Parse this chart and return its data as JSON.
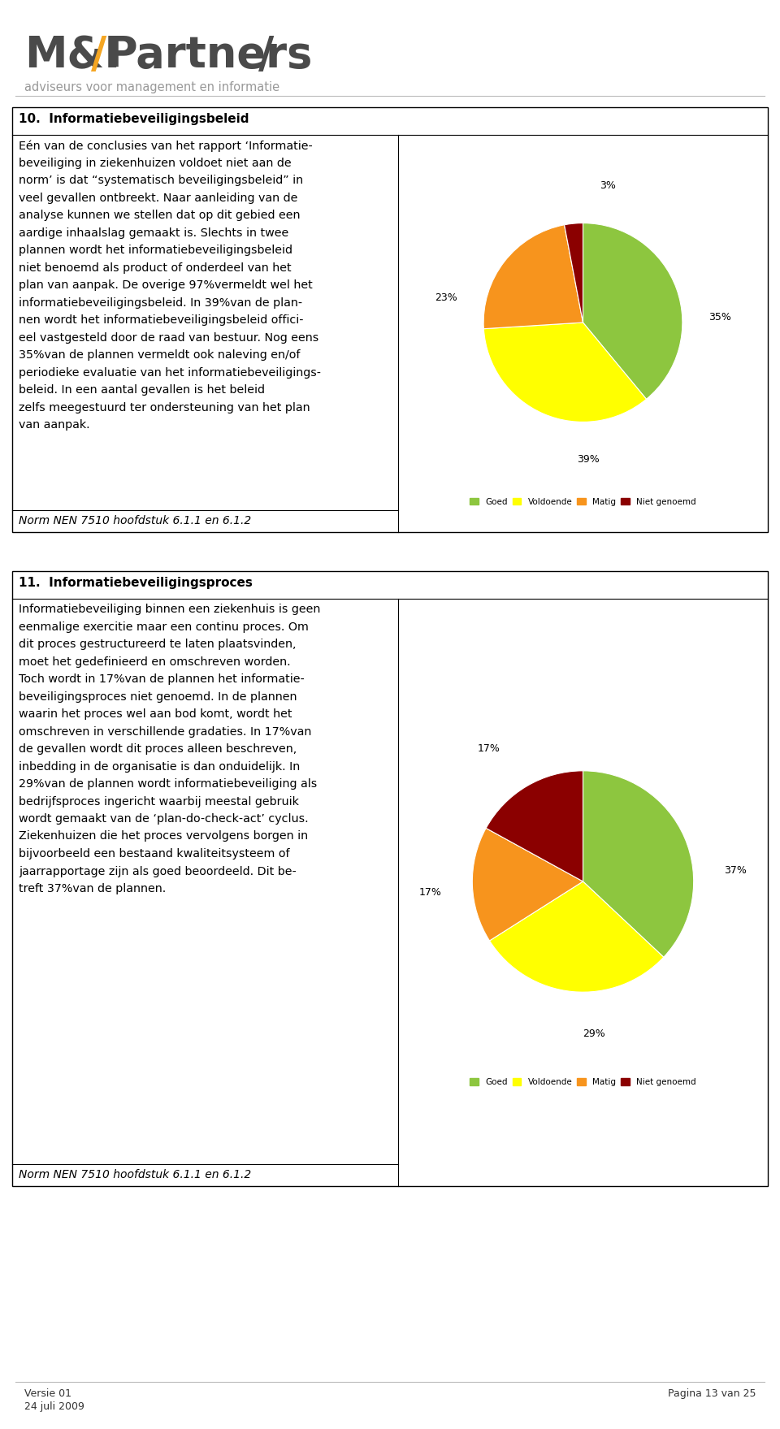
{
  "tagline": "adviseurs voor management en informatie",
  "section10_title": "10.  Informatiebeveiligingsbeleid",
  "section10_norm": "Norm NEN 7510 hoofdstuk 6.1.1 en 6.1.2",
  "section10_values": [
    39,
    35,
    23,
    3
  ],
  "section10_labels": [
    "39%",
    "35%",
    "23%",
    "3%"
  ],
  "section10_lines": [
    "Eén van de conclusies van het rapport ‘Informatie-",
    "beveiliging in ziekenhuizen voldoet niet aan de",
    "norm’ is dat “systematisch beveiligingsbeleid” in",
    "veel gevallen ontbreekt. Naar aanleiding van de",
    "analyse kunnen we stellen dat op dit gebied een",
    "aardige inhaalslag gemaakt is. Slechts in twee",
    "plannen wordt het informatiebeveiligingsbeleid",
    "niet benoemd als product of onderdeel van het",
    "plan van aanpak. De overige 97%vermeldt wel het",
    "informatiebeveiligingsbeleid. In 39%van de plan-",
    "nen wordt het informatiebeveiligingsbeleid offici-",
    "eel vastgesteld door de raad van bestuur. Nog eens",
    "35%van de plannen vermeldt ook naleving en/of",
    "periodieke evaluatie van het informatiebeveiligings-",
    "beleid. In een aantal gevallen is het beleid",
    "zelfs meegestuurd ter ondersteuning van het plan",
    "van aanpak."
  ],
  "section11_title": "11.  Informatiebeveiligingsproces",
  "section11_norm": "Norm NEN 7510 hoofdstuk 6.1.1 en 6.1.2",
  "section11_values": [
    37,
    29,
    17,
    17
  ],
  "section11_labels": [
    "37%",
    "29%",
    "17%",
    "17%"
  ],
  "section11_lines": [
    "Informatiebeveiliging binnen een ziekenhuis is geen",
    "eenmalige exercitie maar een continu proces. Om",
    "dit proces gestructureerd te laten plaatsvinden,",
    "moet het gedefinieerd en omschreven worden.",
    "Toch wordt in 17%van de plannen het informatie-",
    "beveiligingsproces niet genoemd. In de plannen",
    "waarin het proces wel aan bod komt, wordt het",
    "omschreven in verschillende gradaties. In 17%van",
    "de gevallen wordt dit proces alleen beschreven,",
    "inbedding in de organisatie is dan onduidelijk. In",
    "29%van de plannen wordt informatiebeveiliging als",
    "bedrijfsproces ingericht waarbij meestal gebruik",
    "wordt gemaakt van de ‘plan-do-check-act’ cyclus.",
    "Ziekenhuizen die het proces vervolgens borgen in",
    "bijvoorbeeld een bestaand kwaliteitsysteem of",
    "jaarrapportage zijn als goed beoordeeld. Dit be-",
    "treft 37%van de plannen."
  ],
  "colors": [
    "#8DC63F",
    "#FFFF00",
    "#F7941D",
    "#8B0000"
  ],
  "legend_labels": [
    "Goed",
    "Voldoende",
    "Matig",
    "Niet genoemd"
  ],
  "footer_left1": "Versie 01",
  "footer_left2": "24 juli 2009",
  "footer_right": "Pagina 13 van 25",
  "bg_color": "#FFFFFF"
}
